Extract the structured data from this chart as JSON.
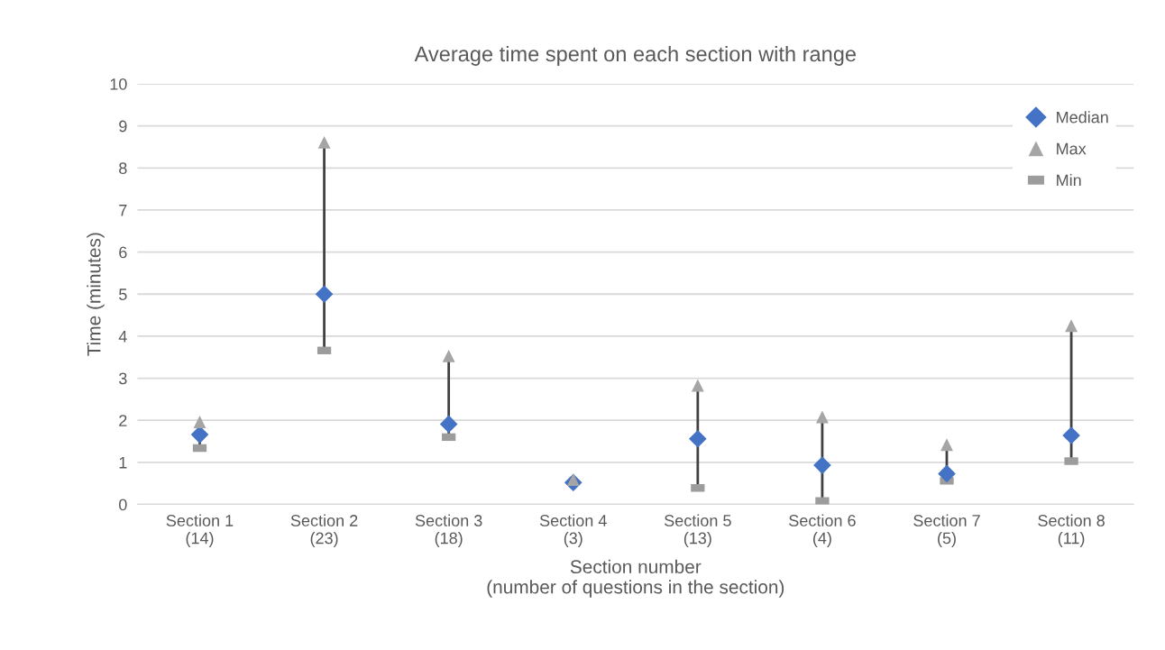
{
  "chart_data": {
    "type": "scatter",
    "title": "Average time spent on each section with range",
    "xlabel": "Section number\n(number of questions in the section)",
    "ylabel": "Time (minutes)",
    "categories": [
      "Section 1\n(14)",
      "Section 2\n(23)",
      "Section 3\n(18)",
      "Section 4\n(3)",
      "Section 5\n(13)",
      "Section 6\n(4)",
      "Section 7\n(5)",
      "Section 8\n(11)"
    ],
    "series": [
      {
        "name": "Median",
        "color": "#4472c4",
        "marker": "diamond",
        "values": [
          1.66,
          5.0,
          1.91,
          0.52,
          1.56,
          0.93,
          0.73,
          1.64
        ]
      },
      {
        "name": "Max",
        "color": "#a5a5a5",
        "marker": "triangle",
        "values": [
          1.96,
          8.61,
          3.53,
          0.59,
          2.83,
          2.08,
          1.42,
          4.25
        ]
      },
      {
        "name": "Min",
        "color": "#9c9c9c",
        "marker": "square",
        "values": [
          1.34,
          3.66,
          1.6,
          null,
          0.39,
          0.08,
          0.56,
          1.03
        ]
      }
    ],
    "ylim": [
      0,
      10
    ],
    "yticks": [
      0,
      1,
      2,
      3,
      4,
      5,
      6,
      7,
      8,
      9,
      10
    ],
    "grid": "y",
    "legend": "top right"
  }
}
